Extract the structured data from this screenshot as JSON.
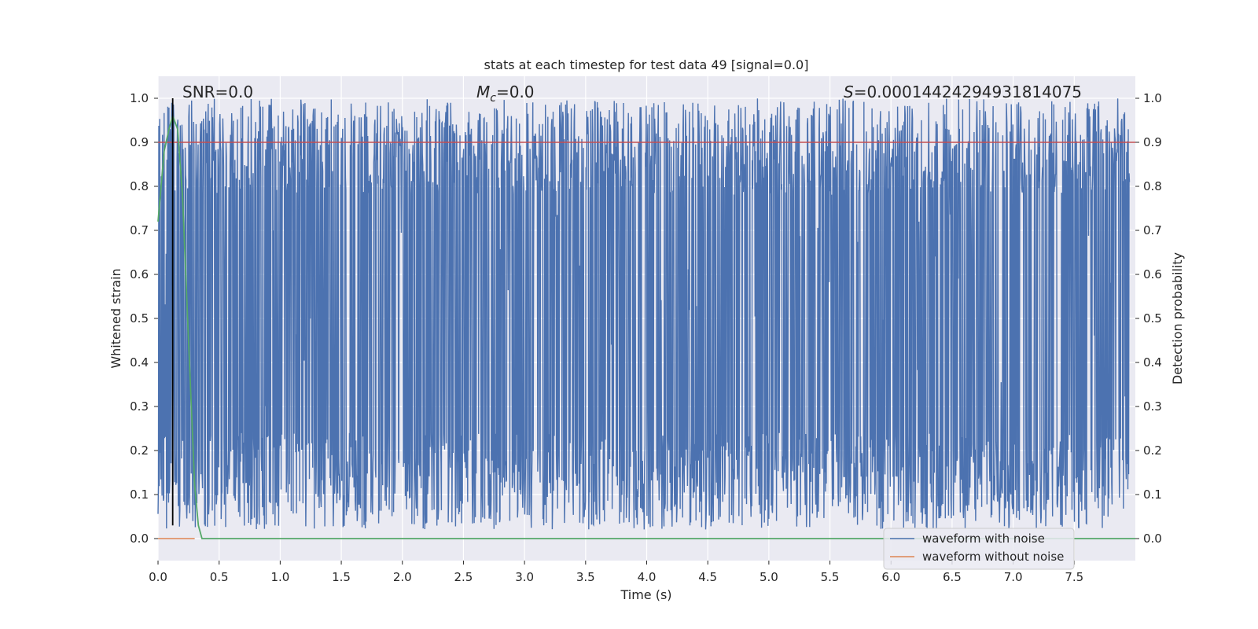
{
  "chart_data": {
    "type": "line",
    "title": "stats at each timestep for test data 49 [signal=0.0]",
    "xlabel": "Time (s)",
    "ylabel_left": "Whitened strain",
    "ylabel_right": "Detection probability",
    "xlim": [
      0.0,
      8.0
    ],
    "ylim": [
      -0.05,
      1.05
    ],
    "xticks": [
      "0.0",
      "0.5",
      "1.0",
      "1.5",
      "2.0",
      "2.5",
      "3.0",
      "3.5",
      "4.0",
      "4.5",
      "5.0",
      "5.5",
      "6.0",
      "6.5",
      "7.0",
      "7.5"
    ],
    "xtick_values": [
      0,
      0.5,
      1,
      1.5,
      2,
      2.5,
      3,
      3.5,
      4,
      4.5,
      5,
      5.5,
      6,
      6.5,
      7,
      7.5
    ],
    "yticks": [
      "0.0",
      "0.1",
      "0.2",
      "0.3",
      "0.4",
      "0.5",
      "0.6",
      "0.7",
      "0.8",
      "0.9",
      "1.0"
    ],
    "ytick_values": [
      0,
      0.1,
      0.2,
      0.3,
      0.4,
      0.5,
      0.6,
      0.7,
      0.8,
      0.9,
      1.0
    ],
    "annotations": {
      "snr": "SNR=0.0",
      "mc_symbol": "M",
      "mc_sub": "c",
      "mc_value": "=0.0",
      "s_symbol": "S",
      "s_value": "=0.00014424294931814075"
    },
    "threshold": 0.9,
    "marker_time": 0.12,
    "series": [
      {
        "name": "waveform with noise",
        "color": "#4c72b0",
        "description_values": "dense noise spanning roughly 0.0–1.0 over 0–8 s"
      },
      {
        "name": "waveform without noise",
        "color": "#dd8452",
        "values": "flat at 0.0"
      },
      {
        "name": "detection probability",
        "color": "#55a868",
        "x": [
          0.0,
          0.05,
          0.09,
          0.12,
          0.16,
          0.2,
          0.25,
          0.3,
          0.33,
          0.36,
          0.4,
          8.0
        ],
        "y": [
          0.72,
          0.88,
          0.93,
          0.96,
          0.93,
          0.78,
          0.45,
          0.12,
          0.03,
          0.0,
          0.0,
          0.0
        ]
      },
      {
        "name": "threshold",
        "color": "#c44e52",
        "y": 0.9
      }
    ],
    "legend": {
      "position": "lower-right",
      "entries": [
        {
          "label": "waveform with noise",
          "color": "#4c72b0"
        },
        {
          "label": "waveform without noise",
          "color": "#dd8452"
        }
      ]
    },
    "colors": {
      "background": "#eaeaf2",
      "grid": "#ffffff",
      "noise": "#4c72b0",
      "clean": "#dd8452",
      "probability": "#55a868",
      "threshold": "#c44e52",
      "marker": "#000000"
    }
  }
}
